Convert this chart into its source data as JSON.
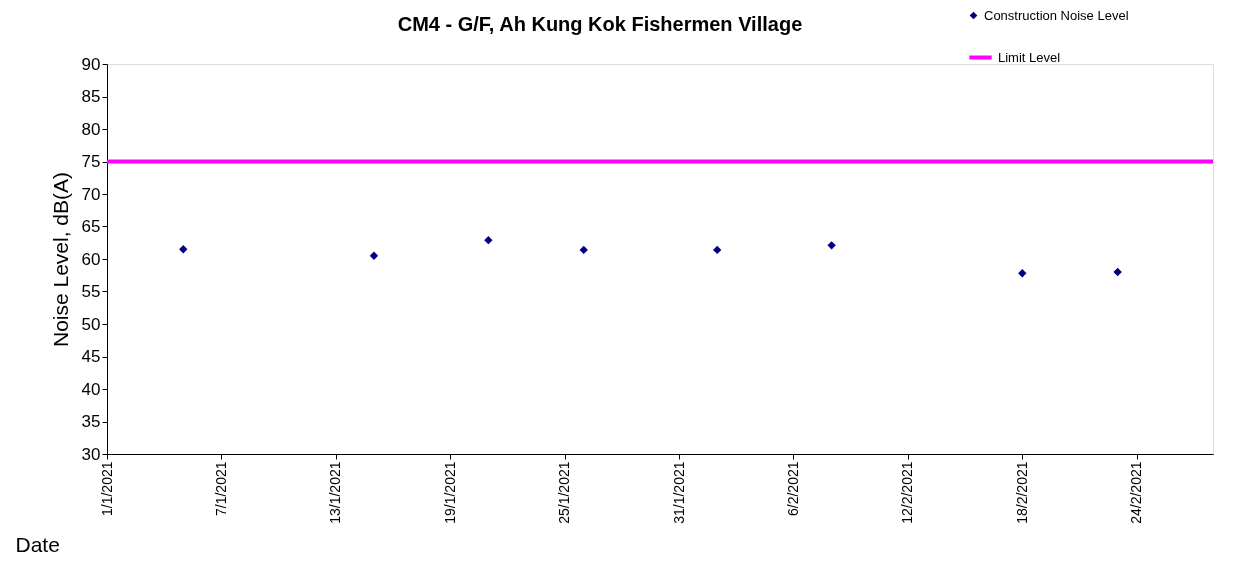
{
  "chart_data": {
    "type": "scatter",
    "title": "CM4 - G/F, Ah Kung Kok Fishermen Village",
    "xlabel": "Date",
    "ylabel": "Noise Level, dB(A)",
    "x": [
      "2021-01-05",
      "2021-01-15",
      "2021-01-21",
      "2021-01-26",
      "2021-02-02",
      "2021-02-08",
      "2021-02-18",
      "2021-02-23"
    ],
    "series": [
      {
        "name": "Construction Noise Level",
        "color": "#000080",
        "values": [
          61.5,
          60.5,
          62.9,
          61.4,
          61.4,
          62.1,
          57.8,
          58.0
        ]
      }
    ],
    "marker": "diamond",
    "ref_lines": [
      {
        "axis": "y",
        "value": 75,
        "label": "Limit Level",
        "color": "#ff00ff",
        "line_style": "solid"
      }
    ],
    "xlim": [
      "2021-01-01",
      "2021-02-28"
    ],
    "xticks": [
      {
        "value": "2021-01-01",
        "label": "1/1/2021"
      },
      {
        "value": "2021-01-07",
        "label": "7/1/2021"
      },
      {
        "value": "2021-01-13",
        "label": "13/1/2021"
      },
      {
        "value": "2021-01-19",
        "label": "19/1/2021"
      },
      {
        "value": "2021-01-25",
        "label": "25/1/2021"
      },
      {
        "value": "2021-01-31",
        "label": "31/1/2021"
      },
      {
        "value": "2021-02-06",
        "label": "6/2/2021"
      },
      {
        "value": "2021-02-12",
        "label": "12/2/2021"
      },
      {
        "value": "2021-02-18",
        "label": "18/2/2021"
      },
      {
        "value": "2021-02-24",
        "label": "24/2/2021"
      }
    ],
    "ylim": [
      30,
      90
    ],
    "yticks": [
      30,
      35,
      40,
      45,
      50,
      55,
      60,
      65,
      70,
      75,
      80,
      85,
      90
    ],
    "grid": false,
    "legend": "top right"
  }
}
